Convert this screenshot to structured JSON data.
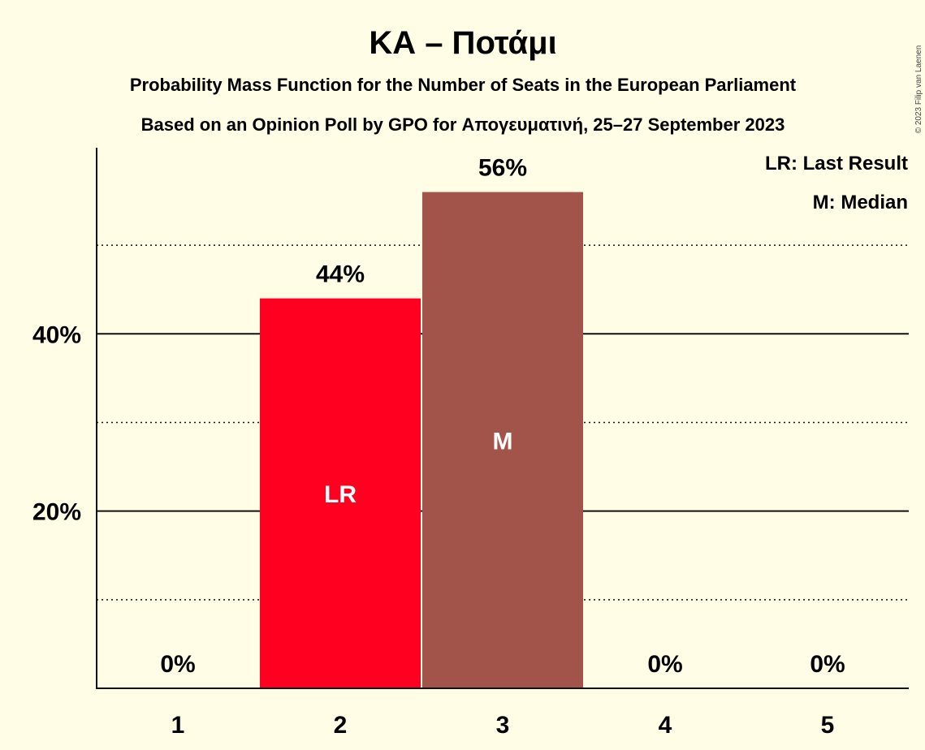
{
  "chart_data": {
    "type": "bar",
    "title": "ΚΑ – Ποτάμι",
    "subtitle_lines": [
      "Probability Mass Function for the Number of Seats in the European Parliament",
      "Based on an Opinion Poll by GPO for Απογευματινή, 25–27 September 2023"
    ],
    "categories": [
      "1",
      "2",
      "3",
      "4",
      "5"
    ],
    "values": [
      0,
      44,
      56,
      0,
      0
    ],
    "value_labels": [
      "0%",
      "44%",
      "56%",
      "0%",
      "0%"
    ],
    "bar_colors": [
      "#FF0020",
      "#FF0020",
      "#A3544A",
      "#A3544A",
      "#A3544A"
    ],
    "bar_annotations": [
      "",
      "LR",
      "M",
      "",
      ""
    ],
    "ylim": [
      0,
      61
    ],
    "y_major_ticks": [
      {
        "value": 20,
        "label": "20%"
      },
      {
        "value": 40,
        "label": "40%"
      }
    ],
    "y_minor_gridlines": [
      10,
      30,
      50
    ],
    "legend": {
      "placement": "top-right",
      "entries": [
        "LR: Last Result",
        "M: Median"
      ]
    },
    "copyright": "© 2023 Filip van Laenen"
  }
}
